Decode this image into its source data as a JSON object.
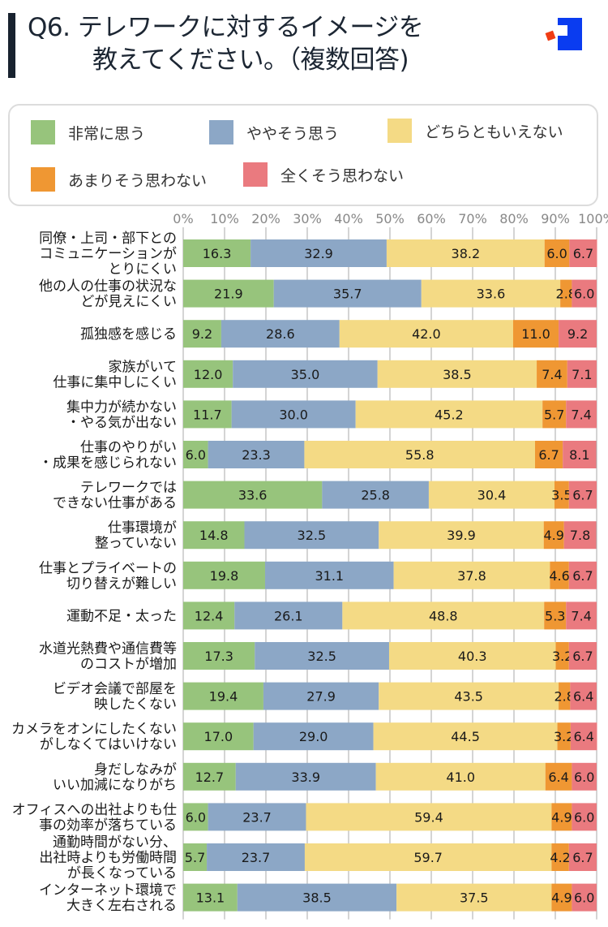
{
  "header": {
    "title_line1": "Q6. テレワークに対するイメージを",
    "title_line2": "教えてください。（複数回答)",
    "logo_icon": "brand-logo-icon"
  },
  "colors": {
    "title_bar": "#18222f",
    "series": [
      "#97c47c",
      "#8ca7c6",
      "#f4da85",
      "#ef9733",
      "#ea7a7f"
    ],
    "grid": "#aaaaaa",
    "logo_blue": "#0a3cf0",
    "logo_red": "#f03c14"
  },
  "legend": [
    {
      "label": "非常に思う",
      "color": "#97c47c"
    },
    {
      "label": "ややそう思う",
      "color": "#8ca7c6"
    },
    {
      "label": "どちらともいえない",
      "color": "#f4da85"
    },
    {
      "label": "あまりそう思わない",
      "color": "#ef9733"
    },
    {
      "label": "全くそう思わない",
      "color": "#ea7a7f"
    }
  ],
  "chart_data": {
    "type": "bar",
    "orientation": "horizontal-stacked-100",
    "title": "Q6. テレワークに対するイメージを教えてください。（複数回答)",
    "xlabel": "",
    "ylabel": "",
    "xlim": [
      0,
      100
    ],
    "grid": true,
    "legend_position": "top",
    "x_ticks": [
      "0%",
      "10%",
      "20%",
      "30%",
      "40%",
      "50%",
      "60%",
      "70%",
      "80%",
      "90%",
      "100%"
    ],
    "categories": [
      [
        "同僚・上司・部下との",
        "コミュニケーションが",
        "とりにくい"
      ],
      [
        "他の人の仕事の状況な",
        "どが見えにくい"
      ],
      [
        "孤独感を感じる"
      ],
      [
        "家族がいて",
        "仕事に集中しにくい"
      ],
      [
        "集中力が続かない",
        "・やる気が出ない"
      ],
      [
        "仕事のやりがい",
        "・成果を感じられない"
      ],
      [
        "テレワークでは",
        "できない仕事がある"
      ],
      [
        "仕事環境が",
        "整っていない"
      ],
      [
        "仕事とプライベートの",
        "切り替えが難しい"
      ],
      [
        "運動不足・太った"
      ],
      [
        "水道光熱費や通信費等",
        "のコストが増加"
      ],
      [
        "ビデオ会議で部屋を",
        "映したくない"
      ],
      [
        "カメラをオンにしたくない",
        "がしなくてはいけない"
      ],
      [
        "身だしなみが",
        "いい加減になりがち"
      ],
      [
        "オフィスへの出社よりも仕",
        "事の効率が落ちている"
      ],
      [
        "通勤時間がない分、",
        "出社時よりも労働時間",
        "が長くなっている"
      ],
      [
        "インターネット環境で",
        "大きく左右される"
      ]
    ],
    "series": [
      {
        "name": "非常に思う",
        "values": [
          16.3,
          21.9,
          9.2,
          12.0,
          11.7,
          6.0,
          33.6,
          14.8,
          19.8,
          12.4,
          17.3,
          19.4,
          17.0,
          12.7,
          6.0,
          5.7,
          13.1
        ]
      },
      {
        "name": "ややそう思う",
        "values": [
          32.9,
          35.7,
          28.6,
          35.0,
          30.0,
          23.3,
          25.8,
          32.5,
          31.1,
          26.1,
          32.5,
          27.9,
          29.0,
          33.9,
          23.7,
          23.7,
          38.5
        ]
      },
      {
        "name": "どちらともいえない",
        "values": [
          38.2,
          33.6,
          42.0,
          38.5,
          45.2,
          55.8,
          30.4,
          39.9,
          37.8,
          48.8,
          40.3,
          43.5,
          44.5,
          41.0,
          59.4,
          59.7,
          37.5
        ]
      },
      {
        "name": "あまりそう思わない",
        "values": [
          6.0,
          2.8,
          11.0,
          7.4,
          5.7,
          6.7,
          3.5,
          4.9,
          4.6,
          5.3,
          3.2,
          2.8,
          3.2,
          6.4,
          4.9,
          4.2,
          4.9
        ]
      },
      {
        "name": "全くそう思わない",
        "values": [
          6.7,
          6.0,
          9.2,
          7.1,
          7.4,
          8.1,
          6.7,
          7.8,
          6.7,
          7.4,
          6.7,
          6.4,
          6.4,
          6.0,
          6.0,
          6.7,
          6.0
        ]
      }
    ]
  }
}
